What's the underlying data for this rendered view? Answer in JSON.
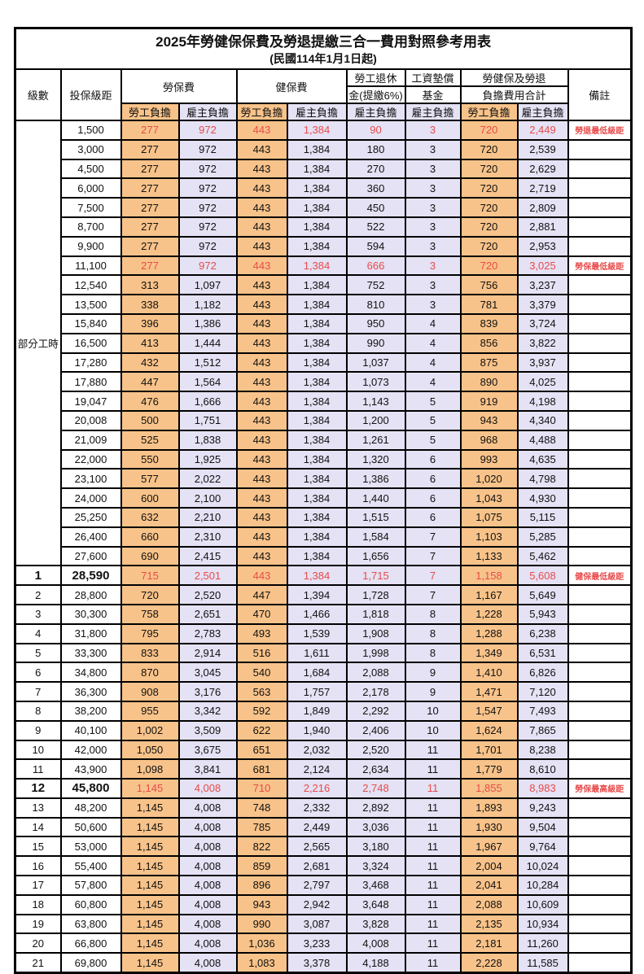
{
  "title": "2025年勞健保保費及勞退提繳三合一費用對照參考用表",
  "subtitle": "(民國114年1月1日起)",
  "columns": {
    "level": "級數",
    "bracket": "投保級距",
    "labor_insurance": "勞保費",
    "health_insurance": "健保費",
    "pension_line1": "勞工退休",
    "pension_line2": "金(提繳6%)",
    "wage_fund_line1": "工資墊償",
    "wage_fund_line2": "基金",
    "total_line1": "勞健保及勞退",
    "total_line2": "負擔費用合計",
    "remark": "備註",
    "employee_share": "勞工負擔",
    "employer_share": "雇主負擔"
  },
  "part_time": {
    "label": "部分工時",
    "row_count": 23
  },
  "colors": {
    "employee_bg": "#F8C38A",
    "employer_bg": "#E4E2F4",
    "highlight_red": "#E84B4B"
  },
  "rows": [
    {
      "bracket": "1,500",
      "values": [
        "277",
        "972",
        "443",
        "1,384",
        "90",
        "3",
        "720",
        "2,449"
      ],
      "red": true,
      "note": "勞退最低級距"
    },
    {
      "bracket": "3,000",
      "values": [
        "277",
        "972",
        "443",
        "1,384",
        "180",
        "3",
        "720",
        "2,539"
      ],
      "note": ""
    },
    {
      "bracket": "4,500",
      "values": [
        "277",
        "972",
        "443",
        "1,384",
        "270",
        "3",
        "720",
        "2,629"
      ],
      "note": ""
    },
    {
      "bracket": "6,000",
      "values": [
        "277",
        "972",
        "443",
        "1,384",
        "360",
        "3",
        "720",
        "2,719"
      ],
      "note": ""
    },
    {
      "bracket": "7,500",
      "values": [
        "277",
        "972",
        "443",
        "1,384",
        "450",
        "3",
        "720",
        "2,809"
      ],
      "note": ""
    },
    {
      "bracket": "8,700",
      "values": [
        "277",
        "972",
        "443",
        "1,384",
        "522",
        "3",
        "720",
        "2,881"
      ],
      "note": ""
    },
    {
      "bracket": "9,900",
      "values": [
        "277",
        "972",
        "443",
        "1,384",
        "594",
        "3",
        "720",
        "2,953"
      ],
      "note": ""
    },
    {
      "bracket": "11,100",
      "values": [
        "277",
        "972",
        "443",
        "1,384",
        "666",
        "3",
        "720",
        "3,025"
      ],
      "red": true,
      "note": "勞保最低級距"
    },
    {
      "bracket": "12,540",
      "values": [
        "313",
        "1,097",
        "443",
        "1,384",
        "752",
        "3",
        "756",
        "3,237"
      ],
      "note": ""
    },
    {
      "bracket": "13,500",
      "values": [
        "338",
        "1,182",
        "443",
        "1,384",
        "810",
        "3",
        "781",
        "3,379"
      ],
      "note": ""
    },
    {
      "bracket": "15,840",
      "values": [
        "396",
        "1,386",
        "443",
        "1,384",
        "950",
        "4",
        "839",
        "3,724"
      ],
      "note": ""
    },
    {
      "bracket": "16,500",
      "values": [
        "413",
        "1,444",
        "443",
        "1,384",
        "990",
        "4",
        "856",
        "3,822"
      ],
      "note": ""
    },
    {
      "bracket": "17,280",
      "values": [
        "432",
        "1,512",
        "443",
        "1,384",
        "1,037",
        "4",
        "875",
        "3,937"
      ],
      "note": ""
    },
    {
      "bracket": "17,880",
      "values": [
        "447",
        "1,564",
        "443",
        "1,384",
        "1,073",
        "4",
        "890",
        "4,025"
      ],
      "note": ""
    },
    {
      "bracket": "19,047",
      "values": [
        "476",
        "1,666",
        "443",
        "1,384",
        "1,143",
        "5",
        "919",
        "4,198"
      ],
      "note": ""
    },
    {
      "bracket": "20,008",
      "values": [
        "500",
        "1,751",
        "443",
        "1,384",
        "1,200",
        "5",
        "943",
        "4,340"
      ],
      "note": ""
    },
    {
      "bracket": "21,009",
      "values": [
        "525",
        "1,838",
        "443",
        "1,384",
        "1,261",
        "5",
        "968",
        "4,488"
      ],
      "note": ""
    },
    {
      "bracket": "22,000",
      "values": [
        "550",
        "1,925",
        "443",
        "1,384",
        "1,320",
        "6",
        "993",
        "4,635"
      ],
      "note": ""
    },
    {
      "bracket": "23,100",
      "values": [
        "577",
        "2,022",
        "443",
        "1,384",
        "1,386",
        "6",
        "1,020",
        "4,798"
      ],
      "note": ""
    },
    {
      "bracket": "24,000",
      "values": [
        "600",
        "2,100",
        "443",
        "1,384",
        "1,440",
        "6",
        "1,043",
        "4,930"
      ],
      "note": ""
    },
    {
      "bracket": "25,250",
      "values": [
        "632",
        "2,210",
        "443",
        "1,384",
        "1,515",
        "6",
        "1,075",
        "5,115"
      ],
      "note": ""
    },
    {
      "bracket": "26,400",
      "values": [
        "660",
        "2,310",
        "443",
        "1,384",
        "1,584",
        "7",
        "1,103",
        "5,285"
      ],
      "note": ""
    },
    {
      "bracket": "27,600",
      "values": [
        "690",
        "2,415",
        "443",
        "1,384",
        "1,656",
        "7",
        "1,133",
        "5,462"
      ],
      "note": ""
    },
    {
      "level": "1",
      "bracket": "28,590",
      "values": [
        "715",
        "2,501",
        "443",
        "1,384",
        "1,715",
        "7",
        "1,158",
        "5,608"
      ],
      "red": true,
      "bold": true,
      "note": "健保最低級距"
    },
    {
      "level": "2",
      "bracket": "28,800",
      "values": [
        "720",
        "2,520",
        "447",
        "1,394",
        "1,728",
        "7",
        "1,167",
        "5,649"
      ],
      "note": ""
    },
    {
      "level": "3",
      "bracket": "30,300",
      "values": [
        "758",
        "2,651",
        "470",
        "1,466",
        "1,818",
        "8",
        "1,228",
        "5,943"
      ],
      "note": ""
    },
    {
      "level": "4",
      "bracket": "31,800",
      "values": [
        "795",
        "2,783",
        "493",
        "1,539",
        "1,908",
        "8",
        "1,288",
        "6,238"
      ],
      "note": ""
    },
    {
      "level": "5",
      "bracket": "33,300",
      "values": [
        "833",
        "2,914",
        "516",
        "1,611",
        "1,998",
        "8",
        "1,349",
        "6,531"
      ],
      "note": ""
    },
    {
      "level": "6",
      "bracket": "34,800",
      "values": [
        "870",
        "3,045",
        "540",
        "1,684",
        "2,088",
        "9",
        "1,410",
        "6,826"
      ],
      "note": ""
    },
    {
      "level": "7",
      "bracket": "36,300",
      "values": [
        "908",
        "3,176",
        "563",
        "1,757",
        "2,178",
        "9",
        "1,471",
        "7,120"
      ],
      "note": ""
    },
    {
      "level": "8",
      "bracket": "38,200",
      "values": [
        "955",
        "3,342",
        "592",
        "1,849",
        "2,292",
        "10",
        "1,547",
        "7,493"
      ],
      "note": ""
    },
    {
      "level": "9",
      "bracket": "40,100",
      "values": [
        "1,002",
        "3,509",
        "622",
        "1,940",
        "2,406",
        "10",
        "1,624",
        "7,865"
      ],
      "note": ""
    },
    {
      "level": "10",
      "bracket": "42,000",
      "values": [
        "1,050",
        "3,675",
        "651",
        "2,032",
        "2,520",
        "11",
        "1,701",
        "8,238"
      ],
      "note": ""
    },
    {
      "level": "11",
      "bracket": "43,900",
      "values": [
        "1,098",
        "3,841",
        "681",
        "2,124",
        "2,634",
        "11",
        "1,779",
        "8,610"
      ],
      "note": ""
    },
    {
      "level": "12",
      "bracket": "45,800",
      "values": [
        "1,145",
        "4,008",
        "710",
        "2,216",
        "2,748",
        "11",
        "1,855",
        "8,983"
      ],
      "red": true,
      "bold": true,
      "note": "勞保最高級距"
    },
    {
      "level": "13",
      "bracket": "48,200",
      "values": [
        "1,145",
        "4,008",
        "748",
        "2,332",
        "2,892",
        "11",
        "1,893",
        "9,243"
      ],
      "note": ""
    },
    {
      "level": "14",
      "bracket": "50,600",
      "values": [
        "1,145",
        "4,008",
        "785",
        "2,449",
        "3,036",
        "11",
        "1,930",
        "9,504"
      ],
      "note": ""
    },
    {
      "level": "15",
      "bracket": "53,000",
      "values": [
        "1,145",
        "4,008",
        "822",
        "2,565",
        "3,180",
        "11",
        "1,967",
        "9,764"
      ],
      "note": ""
    },
    {
      "level": "16",
      "bracket": "55,400",
      "values": [
        "1,145",
        "4,008",
        "859",
        "2,681",
        "3,324",
        "11",
        "2,004",
        "10,024"
      ],
      "note": ""
    },
    {
      "level": "17",
      "bracket": "57,800",
      "values": [
        "1,145",
        "4,008",
        "896",
        "2,797",
        "3,468",
        "11",
        "2,041",
        "10,284"
      ],
      "note": ""
    },
    {
      "level": "18",
      "bracket": "60,800",
      "values": [
        "1,145",
        "4,008",
        "943",
        "2,942",
        "3,648",
        "11",
        "2,088",
        "10,609"
      ],
      "note": ""
    },
    {
      "level": "19",
      "bracket": "63,800",
      "values": [
        "1,145",
        "4,008",
        "990",
        "3,087",
        "3,828",
        "11",
        "2,135",
        "10,934"
      ],
      "note": ""
    },
    {
      "level": "20",
      "bracket": "66,800",
      "values": [
        "1,145",
        "4,008",
        "1,036",
        "3,233",
        "4,008",
        "11",
        "2,181",
        "11,260"
      ],
      "note": ""
    },
    {
      "level": "21",
      "bracket": "69,800",
      "values": [
        "1,145",
        "4,008",
        "1,083",
        "3,378",
        "4,188",
        "11",
        "2,228",
        "11,585"
      ],
      "note": ""
    }
  ]
}
